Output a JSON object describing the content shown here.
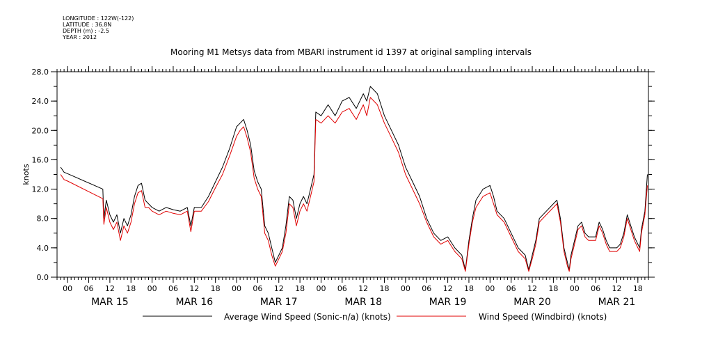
{
  "header": {
    "longitude": "LONGITUDE : 122W(-122)",
    "latitude": "LATITUDE : 36.8N",
    "depth": "DEPTH (m) : -2.5",
    "year": "YEAR : 2012",
    "title": "Mooring M1 Metsys data from MBARI instrument id 1397 at original sampling intervals"
  },
  "chart_data": {
    "type": "line",
    "title": "Mooring M1 Metsys data from MBARI instrument id 1397 at original sampling intervals",
    "ylabel": "knots",
    "xlabel": "",
    "ylim": [
      0,
      28
    ],
    "yticks": [
      0,
      4,
      8,
      12,
      16,
      20,
      24,
      28
    ],
    "ytick_labels": [
      "0.0",
      "4.0",
      "8.0",
      "12.0",
      "16.0",
      "20.0",
      "24.0",
      "28.0"
    ],
    "x_unit": "hours since MAR 15 00:00 (2012)",
    "xlim": [
      -3,
      165
    ],
    "hour_tick_labels": [
      "00",
      "06",
      "12",
      "18"
    ],
    "day_labels": [
      "MAR 15",
      "MAR 16",
      "MAR 17",
      "MAR 18",
      "MAR 19",
      "MAR 20",
      "MAR 21"
    ],
    "grid": false,
    "legend_position": "bottom",
    "series": [
      {
        "name": "Average Wind Speed (Sonic-n/a) (knots)",
        "color": "#000000",
        "points": [
          [
            -2,
            15
          ],
          [
            -1,
            14.3
          ],
          [
            0,
            14.1
          ],
          [
            10,
            12
          ],
          [
            10.3,
            8
          ],
          [
            11,
            10.5
          ],
          [
            12,
            8.5
          ],
          [
            13,
            7.5
          ],
          [
            14,
            8.5
          ],
          [
            15,
            6
          ],
          [
            16,
            8
          ],
          [
            17,
            7
          ],
          [
            18,
            8.5
          ],
          [
            19,
            11
          ],
          [
            20,
            12.5
          ],
          [
            21,
            12.8
          ],
          [
            22,
            10.5
          ],
          [
            23,
            10
          ],
          [
            24,
            9.5
          ],
          [
            26,
            9
          ],
          [
            28,
            9.5
          ],
          [
            30,
            9.2
          ],
          [
            32,
            9
          ],
          [
            34,
            9.5
          ],
          [
            35,
            7
          ],
          [
            36,
            9.5
          ],
          [
            38,
            9.5
          ],
          [
            40,
            11
          ],
          [
            42,
            13
          ],
          [
            44,
            15
          ],
          [
            46,
            17.5
          ],
          [
            48,
            20.5
          ],
          [
            49,
            21
          ],
          [
            50,
            21.5
          ],
          [
            51,
            20
          ],
          [
            52,
            18
          ],
          [
            53,
            14.5
          ],
          [
            54,
            13
          ],
          [
            55,
            12
          ],
          [
            56,
            7
          ],
          [
            57,
            6
          ],
          [
            58,
            4
          ],
          [
            59,
            2
          ],
          [
            60,
            3
          ],
          [
            61,
            4
          ],
          [
            62,
            7
          ],
          [
            63,
            11
          ],
          [
            64,
            10.5
          ],
          [
            65,
            8
          ],
          [
            66,
            10
          ],
          [
            67,
            11
          ],
          [
            68,
            10
          ],
          [
            69,
            12
          ],
          [
            70,
            14
          ],
          [
            70.5,
            22.5
          ],
          [
            72,
            22
          ],
          [
            74,
            23.5
          ],
          [
            76,
            22
          ],
          [
            78,
            24
          ],
          [
            80,
            24.5
          ],
          [
            82,
            23
          ],
          [
            84,
            25
          ],
          [
            85,
            24
          ],
          [
            86,
            26
          ],
          [
            88,
            25
          ],
          [
            90,
            22
          ],
          [
            92,
            20
          ],
          [
            94,
            18
          ],
          [
            96,
            15
          ],
          [
            98,
            13
          ],
          [
            100,
            11
          ],
          [
            102,
            8
          ],
          [
            104,
            6
          ],
          [
            106,
            5
          ],
          [
            108,
            5.5
          ],
          [
            110,
            4
          ],
          [
            112,
            3
          ],
          [
            113,
            1
          ],
          [
            114,
            5
          ],
          [
            115,
            8
          ],
          [
            116,
            10.5
          ],
          [
            118,
            12
          ],
          [
            120,
            12.5
          ],
          [
            121,
            11
          ],
          [
            122,
            9
          ],
          [
            124,
            8
          ],
          [
            126,
            6
          ],
          [
            128,
            4
          ],
          [
            130,
            3
          ],
          [
            131,
            1
          ],
          [
            132,
            3
          ],
          [
            133,
            5
          ],
          [
            134,
            8
          ],
          [
            136,
            9
          ],
          [
            138,
            10
          ],
          [
            139,
            10.5
          ],
          [
            140,
            8
          ],
          [
            141,
            4
          ],
          [
            142,
            2
          ],
          [
            142.5,
            1
          ],
          [
            143,
            3
          ],
          [
            144,
            5
          ],
          [
            145,
            7
          ],
          [
            146,
            7.5
          ],
          [
            147,
            6
          ],
          [
            148,
            5.5
          ],
          [
            150,
            5.5
          ],
          [
            151,
            7.5
          ],
          [
            152,
            6.5
          ],
          [
            153,
            5
          ],
          [
            154,
            4
          ],
          [
            156,
            4
          ],
          [
            157,
            4.5
          ],
          [
            158,
            6
          ],
          [
            159,
            8.5
          ],
          [
            160,
            7
          ],
          [
            161,
            5.5
          ],
          [
            162,
            4.5
          ],
          [
            162.5,
            4
          ],
          [
            163,
            6.5
          ],
          [
            164,
            9
          ],
          [
            164.7,
            14
          ]
        ]
      },
      {
        "name": "Wind Speed (Windbird) (knots)",
        "color": "#e00000",
        "points": [
          [
            -2,
            14
          ],
          [
            -1,
            13.3
          ],
          [
            0,
            13.1
          ],
          [
            10,
            10.7
          ],
          [
            10.3,
            7.2
          ],
          [
            11,
            9.5
          ],
          [
            12,
            7.5
          ],
          [
            13,
            6.5
          ],
          [
            14,
            7.5
          ],
          [
            15,
            5
          ],
          [
            16,
            7
          ],
          [
            17,
            6
          ],
          [
            18,
            7.5
          ],
          [
            19,
            10
          ],
          [
            20,
            11.5
          ],
          [
            21,
            11.8
          ],
          [
            22,
            9.5
          ],
          [
            23,
            9.5
          ],
          [
            24,
            9
          ],
          [
            26,
            8.5
          ],
          [
            28,
            9
          ],
          [
            30,
            8.7
          ],
          [
            32,
            8.5
          ],
          [
            34,
            9
          ],
          [
            35,
            6.2
          ],
          [
            36,
            9
          ],
          [
            38,
            9
          ],
          [
            40,
            10.3
          ],
          [
            42,
            12.2
          ],
          [
            44,
            14
          ],
          [
            46,
            16.5
          ],
          [
            48,
            19.2
          ],
          [
            49,
            20
          ],
          [
            50,
            20.5
          ],
          [
            51,
            19
          ],
          [
            52,
            17
          ],
          [
            53,
            13.5
          ],
          [
            54,
            12
          ],
          [
            55,
            11
          ],
          [
            56,
            6
          ],
          [
            57,
            5
          ],
          [
            58,
            3
          ],
          [
            59,
            1.5
          ],
          [
            60,
            2.5
          ],
          [
            61,
            3.5
          ],
          [
            62,
            6
          ],
          [
            63,
            10
          ],
          [
            64,
            9.5
          ],
          [
            65,
            7
          ],
          [
            66,
            9
          ],
          [
            67,
            10
          ],
          [
            68,
            9
          ],
          [
            69,
            11
          ],
          [
            70,
            13
          ],
          [
            70.5,
            21.5
          ],
          [
            72,
            21
          ],
          [
            74,
            22
          ],
          [
            76,
            21
          ],
          [
            78,
            22.5
          ],
          [
            80,
            23
          ],
          [
            82,
            21.5
          ],
          [
            84,
            23.5
          ],
          [
            85,
            22
          ],
          [
            86,
            24.5
          ],
          [
            88,
            23.5
          ],
          [
            90,
            21
          ],
          [
            92,
            19
          ],
          [
            94,
            17
          ],
          [
            96,
            14
          ],
          [
            98,
            12
          ],
          [
            100,
            10
          ],
          [
            102,
            7.5
          ],
          [
            104,
            5.5
          ],
          [
            106,
            4.5
          ],
          [
            108,
            5
          ],
          [
            110,
            3.5
          ],
          [
            112,
            2.5
          ],
          [
            113,
            0.8
          ],
          [
            114,
            4.5
          ],
          [
            115,
            7.5
          ],
          [
            116,
            9.5
          ],
          [
            118,
            11
          ],
          [
            120,
            11.5
          ],
          [
            121,
            10
          ],
          [
            122,
            8.5
          ],
          [
            124,
            7.5
          ],
          [
            126,
            5.5
          ],
          [
            128,
            3.5
          ],
          [
            130,
            2.5
          ],
          [
            131,
            0.8
          ],
          [
            132,
            2.5
          ],
          [
            133,
            4.5
          ],
          [
            134,
            7.5
          ],
          [
            136,
            8.5
          ],
          [
            138,
            9.5
          ],
          [
            139,
            10
          ],
          [
            140,
            7.5
          ],
          [
            141,
            3.5
          ],
          [
            142,
            1.5
          ],
          [
            142.5,
            0.8
          ],
          [
            143,
            2.5
          ],
          [
            144,
            4.5
          ],
          [
            145,
            6.5
          ],
          [
            146,
            7
          ],
          [
            147,
            5.5
          ],
          [
            148,
            5
          ],
          [
            150,
            5
          ],
          [
            151,
            7
          ],
          [
            152,
            6
          ],
          [
            153,
            4.5
          ],
          [
            154,
            3.5
          ],
          [
            156,
            3.5
          ],
          [
            157,
            4
          ],
          [
            158,
            5.5
          ],
          [
            159,
            8
          ],
          [
            160,
            6.5
          ],
          [
            161,
            5
          ],
          [
            162,
            4
          ],
          [
            162.5,
            3.5
          ],
          [
            163,
            6
          ],
          [
            164,
            8.5
          ],
          [
            164.7,
            12.5
          ]
        ]
      }
    ]
  }
}
